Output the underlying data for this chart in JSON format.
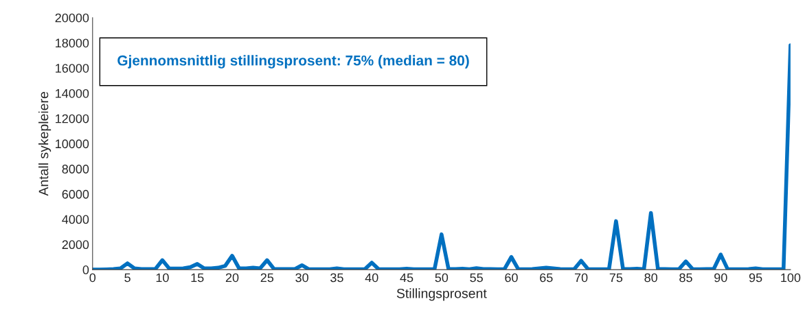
{
  "chart_data": {
    "type": "line",
    "xlabel": "Stillingsprosent",
    "ylabel": "Antall sykepleiere",
    "annotations": [
      "Gjennomsnittlig stillingsprosent: 75% (median = 80)"
    ],
    "x": [
      0,
      1,
      2,
      3,
      4,
      5,
      6,
      7,
      8,
      9,
      10,
      11,
      12,
      13,
      14,
      15,
      16,
      17,
      18,
      19,
      20,
      21,
      22,
      23,
      24,
      25,
      26,
      27,
      28,
      29,
      30,
      31,
      32,
      33,
      34,
      35,
      36,
      37,
      38,
      39,
      40,
      41,
      42,
      43,
      44,
      45,
      46,
      47,
      48,
      49,
      50,
      51,
      52,
      53,
      54,
      55,
      56,
      57,
      58,
      59,
      60,
      61,
      62,
      63,
      64,
      65,
      66,
      67,
      68,
      69,
      70,
      71,
      72,
      73,
      74,
      75,
      76,
      77,
      78,
      79,
      80,
      81,
      82,
      83,
      84,
      85,
      86,
      87,
      88,
      89,
      90,
      91,
      92,
      93,
      94,
      95,
      96,
      97,
      98,
      99,
      100
    ],
    "series": [
      {
        "color": "#0070c0",
        "values": [
          0,
          0,
          20,
          50,
          100,
          500,
          100,
          50,
          50,
          50,
          750,
          80,
          80,
          100,
          200,
          450,
          100,
          100,
          150,
          300,
          1100,
          100,
          100,
          150,
          100,
          750,
          50,
          50,
          50,
          50,
          350,
          30,
          30,
          30,
          30,
          100,
          30,
          30,
          30,
          30,
          550,
          30,
          30,
          30,
          30,
          80,
          30,
          30,
          30,
          50,
          2800,
          50,
          50,
          80,
          30,
          120,
          50,
          50,
          30,
          30,
          1000,
          30,
          30,
          50,
          100,
          150,
          100,
          50,
          30,
          30,
          700,
          30,
          30,
          30,
          50,
          3850,
          50,
          50,
          80,
          30,
          4500,
          50,
          50,
          30,
          30,
          650,
          30,
          30,
          50,
          50,
          1200,
          30,
          30,
          30,
          50,
          100,
          30,
          30,
          30,
          30,
          17800
        ]
      }
    ],
    "xlim": [
      0,
      100
    ],
    "xticks": [
      0,
      5,
      10,
      15,
      20,
      25,
      30,
      35,
      40,
      45,
      50,
      55,
      60,
      65,
      70,
      75,
      80,
      85,
      90,
      95,
      100
    ],
    "ylim": [
      0,
      20000
    ],
    "yticks": [
      0,
      2000,
      4000,
      6000,
      8000,
      10000,
      12000,
      14000,
      16000,
      18000,
      20000
    ],
    "grid": false,
    "legend": false,
    "marker": "none",
    "line_style": "solid"
  }
}
